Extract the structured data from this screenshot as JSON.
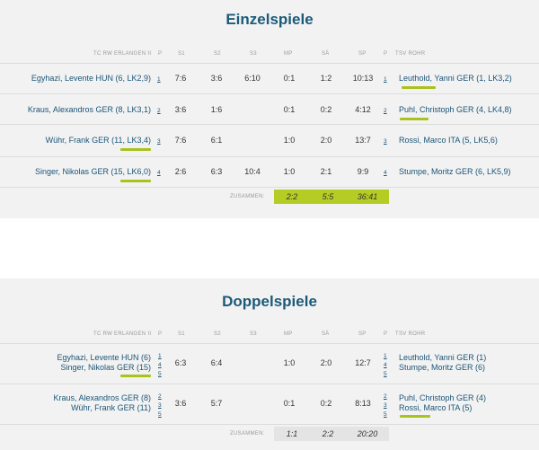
{
  "einzel": {
    "title": "Einzelspiele",
    "head": {
      "home": "TC RW ERLANGEN II",
      "p": "P",
      "s1": "S1",
      "s2": "S2",
      "s3": "S3",
      "mp": "MP",
      "sa": "SÄ",
      "sp": "SP",
      "p2": "P",
      "away": "TSV ROHR"
    },
    "rows": [
      {
        "home": "Egyhazi, Levente HUN (6, LK2,9)",
        "hp": "1",
        "s1": "7:6",
        "s2": "3:6",
        "s3": "6:10",
        "mp": "0:1",
        "sa": "1:2",
        "sp": "10:13",
        "ap": "1",
        "away": "Leuthold, Yanni GER (1, LK3,2)"
      },
      {
        "home": "Kraus, Alexandros GER (8, LK3,1)",
        "hp": "2",
        "s1": "3:6",
        "s2": "1:6",
        "s3": "",
        "mp": "0:1",
        "sa": "0:2",
        "sp": "4:12",
        "ap": "2",
        "away": "Puhl, Christoph GER (4, LK4,8)"
      },
      {
        "home": "Wühr, Frank GER (11, LK3,4)",
        "hp": "3",
        "s1": "7:6",
        "s2": "6:1",
        "s3": "",
        "mp": "1:0",
        "sa": "2:0",
        "sp": "13:7",
        "ap": "3",
        "away": "Rossi, Marco ITA (5, LK5,6)"
      },
      {
        "home": "Singer, Nikolas GER (15, LK6,0)",
        "hp": "4",
        "s1": "2:6",
        "s2": "6:3",
        "s3": "10:4",
        "mp": "1:0",
        "sa": "2:1",
        "sp": "9:9",
        "ap": "4",
        "away": "Stumpe, Moritz GER (6, LK5,9)"
      }
    ],
    "sum": {
      "label": "ZUSAMMEN:",
      "mp": "2:2",
      "sa": "5:5",
      "sp": "36:41"
    }
  },
  "doppel": {
    "title": "Doppelspiele",
    "head": {
      "home": "TC RW ERLANGEN II",
      "p": "P",
      "s1": "S1",
      "s2": "S2",
      "s3": "S3",
      "mp": "MP",
      "sa": "SÄ",
      "sp": "SP",
      "p2": "P",
      "away": "TSV ROHR"
    },
    "rows": [
      {
        "home1": "Egyhazi, Levente HUN (6)",
        "home2": "Singer, Nikolas GER (15)",
        "hp": [
          "1",
          "4",
          "5"
        ],
        "s1": "6:3",
        "s2": "6:4",
        "s3": "",
        "mp": "1:0",
        "sa": "2:0",
        "sp": "12:7",
        "ap": [
          "1",
          "4",
          "5"
        ],
        "away1": "Leuthold, Yanni GER (1)",
        "away2": "Stumpe, Moritz GER (6)"
      },
      {
        "home1": "Kraus, Alexandros GER (8)",
        "home2": "Wühr, Frank GER (11)",
        "hp": [
          "2",
          "3",
          "5"
        ],
        "s1": "3:6",
        "s2": "5:7",
        "s3": "",
        "mp": "0:1",
        "sa": "0:2",
        "sp": "8:13",
        "ap": [
          "2",
          "3",
          "5"
        ],
        "away1": "Puhl, Christoph GER (4)",
        "away2": "Rossi, Marco ITA (5)"
      }
    ],
    "sum": {
      "label": "ZUSAMMEN:",
      "mp": "1:1",
      "sa": "2:2",
      "sp": "20:20"
    }
  },
  "colors": {
    "title": "#1b5a78",
    "link": "#1a5577",
    "accent": "#a9c21e",
    "panel": "#f2f2f2"
  }
}
